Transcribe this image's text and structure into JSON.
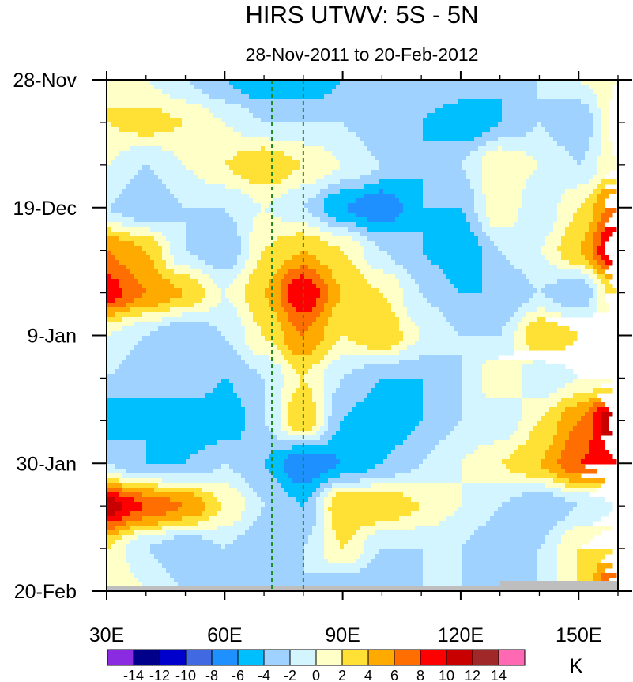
{
  "chart_data": {
    "type": "heatmap",
    "title": "HIRS UTWV: 5S - 5N",
    "subtitle": "28-Nov-2011 to 20-Feb-2012",
    "units_label": "K",
    "x": {
      "range": [
        30,
        160
      ],
      "ticks": [
        30,
        60,
        90,
        120,
        150
      ],
      "tick_labels": [
        "30E",
        "60E",
        "90E",
        "120E",
        "150E"
      ],
      "minor_step": 10
    },
    "y": {
      "range_days": [
        0,
        84
      ],
      "ticks_days": [
        0,
        21,
        42,
        63,
        84
      ],
      "tick_labels": [
        "28-Nov",
        "19-Dec",
        "9-Jan",
        "30-Jan",
        "20-Feb"
      ],
      "minor_step_days": 7
    },
    "reference_lines_lon": [
      72,
      80
    ],
    "grid_lon": [
      30,
      40,
      50,
      60,
      70,
      80,
      90,
      100,
      110,
      120,
      130,
      140,
      150,
      160
    ],
    "grid_day": [
      0,
      7,
      14,
      21,
      28,
      35,
      42,
      49,
      56,
      63,
      70,
      77,
      84
    ],
    "values": [
      [
        2,
        0,
        -2,
        -4,
        -6,
        -6,
        -4,
        -2,
        -2,
        -2,
        -4,
        -2,
        0,
        2
      ],
      [
        2,
        3,
        2,
        0,
        -2,
        -2,
        -2,
        -4,
        -4,
        -6,
        -4,
        -2,
        -4,
        3
      ],
      [
        0,
        -2,
        0,
        2,
        4,
        2,
        0,
        -2,
        -4,
        -2,
        2,
        0,
        -2,
        2
      ],
      [
        -2,
        -4,
        -2,
        -2,
        0,
        -2,
        -6,
        -8,
        -4,
        -4,
        2,
        -2,
        2,
        8
      ],
      [
        6,
        4,
        -2,
        -4,
        2,
        4,
        2,
        -2,
        -4,
        -6,
        -2,
        0,
        4,
        12
      ],
      [
        9,
        6,
        4,
        0,
        4,
        10,
        4,
        2,
        -2,
        -4,
        -4,
        -2,
        -4,
        4
      ],
      [
        0,
        -2,
        -4,
        -2,
        2,
        6,
        2,
        4,
        0,
        -2,
        -2,
        4,
        2,
        0
      ],
      [
        -2,
        -4,
        -2,
        -4,
        -2,
        2,
        -2,
        -4,
        -4,
        -2,
        2,
        -2,
        0,
        2
      ],
      [
        -6,
        -4,
        -6,
        -6,
        -2,
        4,
        -4,
        -6,
        -4,
        -2,
        -2,
        2,
        6,
        13
      ],
      [
        -2,
        -4,
        -4,
        -2,
        -4,
        -8,
        -6,
        -4,
        -2,
        0,
        2,
        4,
        8,
        10
      ],
      [
        11,
        8,
        6,
        2,
        -2,
        -4,
        4,
        4,
        2,
        0,
        -2,
        -4,
        -2,
        0
      ],
      [
        2,
        -2,
        -4,
        -2,
        -4,
        -2,
        2,
        -2,
        -2,
        -2,
        -4,
        -2,
        2,
        4
      ],
      [
        2,
        0,
        -2,
        -4,
        -2,
        -2,
        -4,
        -4,
        -2,
        -2,
        -4,
        -2,
        2,
        10
      ]
    ],
    "levels": [
      -14,
      -12,
      -10,
      -8,
      -6,
      -4,
      -2,
      0,
      2,
      4,
      6,
      8,
      10,
      12,
      14
    ],
    "level_labels": [
      "-14",
      "-12",
      "-10",
      "-8",
      "-6",
      "-4",
      "-2",
      "0",
      "2",
      "4",
      "6",
      "8",
      "10",
      "12",
      "14"
    ],
    "colors": [
      "#8a2be2",
      "#00008b",
      "#0000cd",
      "#4169e1",
      "#1e90ff",
      "#00bfff",
      "#a0d2ff",
      "#d2f5ff",
      "#ffffc8",
      "#ffe135",
      "#ffaa00",
      "#ff6e00",
      "#ff0000",
      "#c80000",
      "#a02828",
      "#ff69b4"
    ],
    "missing_color": "#bebebe",
    "reference_line_color": "#228b22"
  }
}
